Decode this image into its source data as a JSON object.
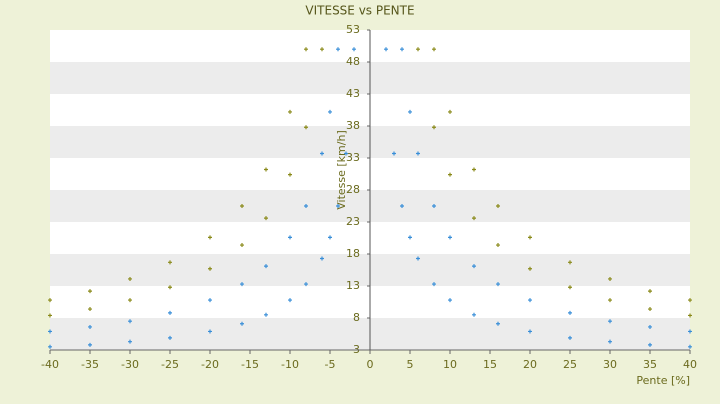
{
  "chart_data": {
    "type": "scatter",
    "title": "VITESSE vs PENTE",
    "x_label": "Pente [%]",
    "y_label": "Vitesse [km/h]",
    "xlim": [
      -40,
      40
    ],
    "xticks": [
      -40,
      -35,
      -30,
      -25,
      -20,
      -15,
      -10,
      -5,
      0,
      5,
      10,
      15,
      20,
      25,
      30,
      35,
      40
    ],
    "ylim": [
      3,
      53
    ],
    "yticks": [
      3,
      8,
      13,
      18,
      23,
      28,
      33,
      38,
      43,
      48,
      53
    ],
    "grid": true,
    "series": [
      {
        "color": "#3a8fd8",
        "x": [
          -40,
          -35,
          -30,
          -25,
          -20,
          -16,
          -13,
          -10,
          -8,
          -6,
          -5,
          -4,
          -3,
          -2,
          2,
          3,
          4,
          5,
          6,
          8,
          10,
          13,
          16,
          20,
          25,
          30,
          35,
          40,
          -40,
          -35,
          -30,
          -25,
          -20,
          -16,
          -13,
          -10,
          -8,
          -6,
          -5,
          -4,
          4,
          5,
          6,
          8,
          10,
          13,
          16,
          20,
          25,
          30,
          35,
          40
        ],
        "values": [
          3.5,
          3.8,
          4.3,
          4.9,
          5.9,
          7.1,
          8.5,
          10.8,
          13.3,
          17.3,
          20.6,
          25.5,
          33.7,
          50,
          50,
          33.7,
          25.5,
          20.6,
          17.3,
          13.3,
          10.8,
          8.5,
          7.1,
          5.9,
          4.9,
          4.3,
          3.8,
          3.5,
          5.9,
          6.6,
          7.5,
          8.8,
          10.8,
          13.3,
          16.1,
          20.6,
          25.5,
          33.7,
          40.2,
          50,
          50,
          40.2,
          33.7,
          25.5,
          20.6,
          16.1,
          13.3,
          10.8,
          8.8,
          7.5,
          6.6,
          5.9
        ]
      },
      {
        "color": "#8a8a1a",
        "x": [
          -40,
          -35,
          -30,
          -25,
          -20,
          -16,
          -13,
          -10,
          -8,
          -6,
          6,
          8,
          10,
          13,
          16,
          20,
          25,
          30,
          35,
          40,
          -40,
          -35,
          -30,
          -25,
          -20,
          -16,
          -13,
          -10,
          -8,
          8,
          10,
          13,
          16,
          20,
          25,
          30,
          35,
          40
        ],
        "values": [
          8.4,
          9.4,
          10.8,
          12.8,
          15.7,
          19.4,
          23.6,
          30.4,
          37.8,
          50,
          50,
          37.8,
          30.4,
          23.6,
          19.4,
          15.7,
          12.8,
          10.8,
          9.4,
          8.4,
          10.8,
          12.2,
          14.1,
          16.7,
          20.6,
          25.5,
          31.2,
          40.2,
          50,
          50,
          40.2,
          31.2,
          25.5,
          20.6,
          16.7,
          14.1,
          12.2,
          10.8
        ]
      }
    ]
  }
}
